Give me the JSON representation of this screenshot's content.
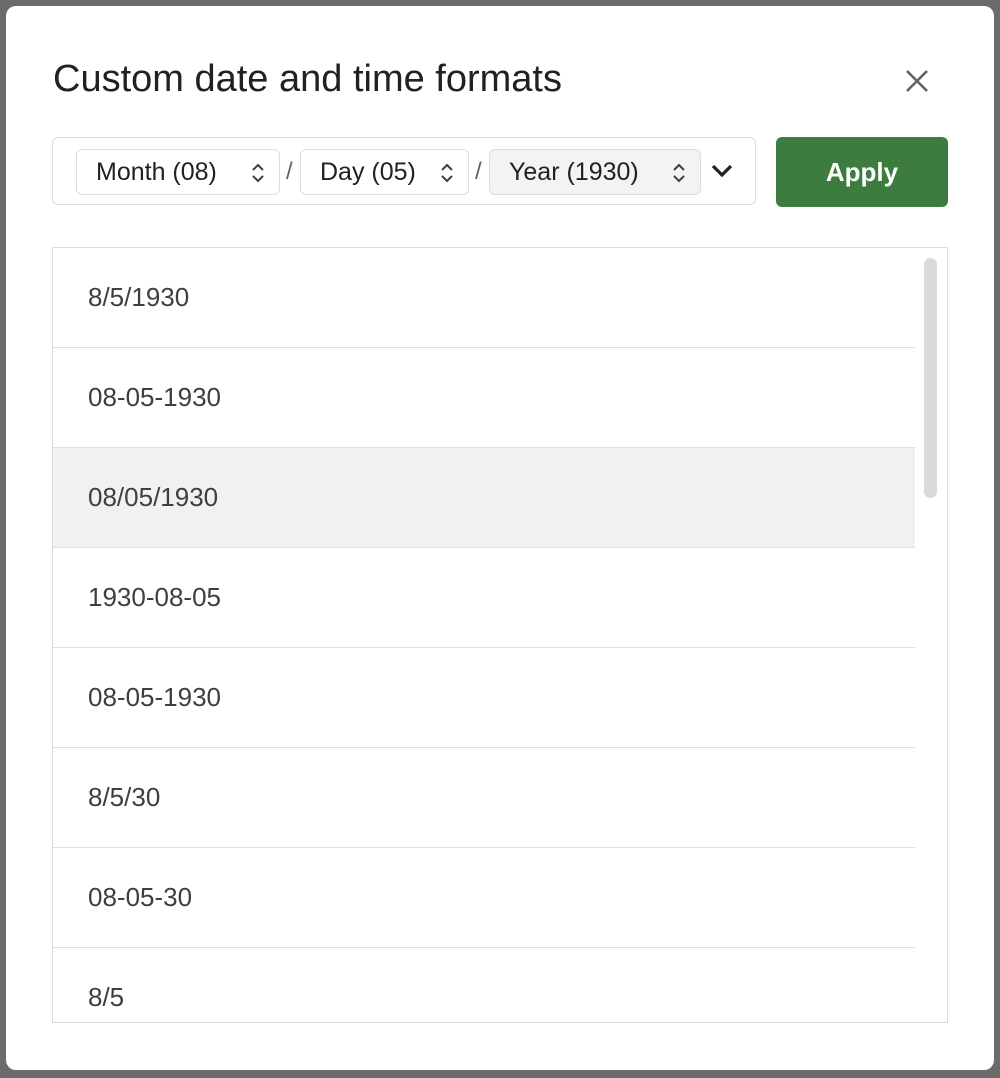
{
  "dialog": {
    "title": "Custom date and time formats",
    "close_icon": "close-icon"
  },
  "picker": {
    "month": "Month (08)",
    "day": "Day (05)",
    "year": "Year (1930)",
    "separator": "/"
  },
  "apply_label": "Apply",
  "colors": {
    "apply": "#3c7d3f",
    "highlight": "#f1f1f1"
  },
  "formats": [
    "8/5/1930",
    "08-05-1930",
    "08/05/1930",
    "1930-08-05",
    "08-05-1930",
    "8/5/30",
    "08-05-30",
    "8/5"
  ],
  "highlighted_index": 2
}
